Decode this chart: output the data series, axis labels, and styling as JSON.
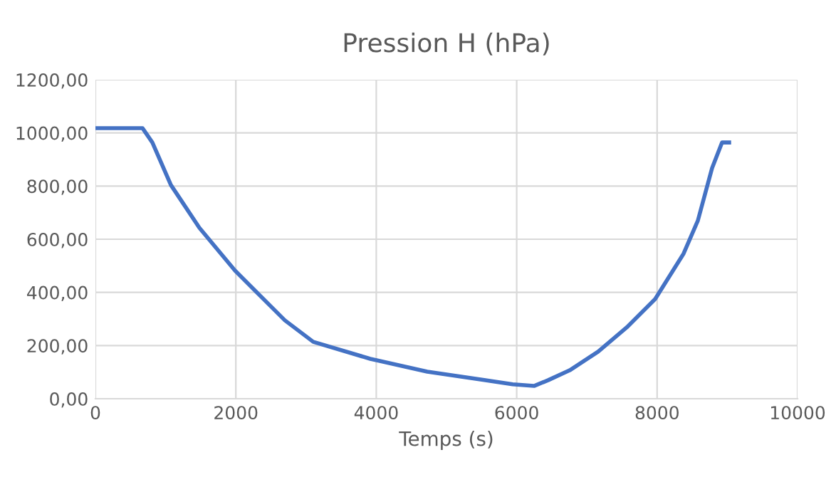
{
  "chart_data": {
    "type": "line",
    "title": "Pression H (hPa)",
    "xlabel": "Temps (s)",
    "series": [
      {
        "color": "#4472c4",
        "x": [
          0,
          670,
          811,
          1075,
          1481,
          1988,
          2292,
          2698,
          3103,
          3915,
          4726,
          5538,
          5943,
          6247,
          6450,
          6755,
          7160,
          7566,
          7972,
          8377,
          8580,
          8783,
          8925,
          9026
        ],
        "values": [
          1018,
          1018,
          964,
          804,
          643,
          482,
          402,
          295,
          214,
          150,
          102,
          70,
          54,
          48,
          70,
          107,
          177,
          268,
          375,
          546,
          670,
          868,
          964,
          964
        ]
      }
    ],
    "xlim": [
      0,
      10000
    ],
    "xticks": [
      0,
      2000,
      4000,
      6000,
      8000,
      10000
    ],
    "ylim": [
      0,
      1200
    ],
    "yticks": [
      {
        "value": 0,
        "label": "0,00"
      },
      {
        "value": 200,
        "label": "200,00"
      },
      {
        "value": 400,
        "label": "400,00"
      },
      {
        "value": 600,
        "label": "600,00"
      },
      {
        "value": 800,
        "label": "800,00"
      },
      {
        "value": 1000,
        "label": "1000,00"
      },
      {
        "value": 1200,
        "label": "1200,00"
      }
    ],
    "grid": true,
    "marker": "none",
    "line_style": "solid"
  }
}
